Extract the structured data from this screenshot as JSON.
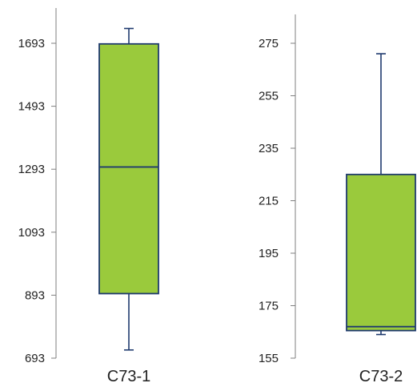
{
  "chart_data": [
    {
      "type": "box",
      "title": "",
      "xlabel": "",
      "ylabel": "",
      "ylim": [
        693,
        1693
      ],
      "yticks": [
        "693",
        "893",
        "1093",
        "1293",
        "1493",
        "1693"
      ],
      "categories": [
        "C73-1"
      ],
      "boxes": [
        {
          "label": "C73-1",
          "min": 719,
          "q1": 898,
          "median": 1300,
          "q3": 1691,
          "max": 1740
        }
      ],
      "colors": {
        "fill": "#9ACA3C",
        "stroke": "#1F3A6E"
      }
    },
    {
      "type": "box",
      "title": "",
      "xlabel": "",
      "ylabel": "",
      "ylim": [
        155,
        275
      ],
      "yticks": [
        "155",
        "175",
        "195",
        "215",
        "235",
        "255",
        "275"
      ],
      "categories": [
        "C73-2"
      ],
      "boxes": [
        {
          "label": "C73-2",
          "min": 164,
          "q1": 165.5,
          "median": 167,
          "q3": 225,
          "max": 271
        }
      ],
      "colors": {
        "fill": "#9ACA3C",
        "stroke": "#1F3A6E"
      }
    }
  ]
}
